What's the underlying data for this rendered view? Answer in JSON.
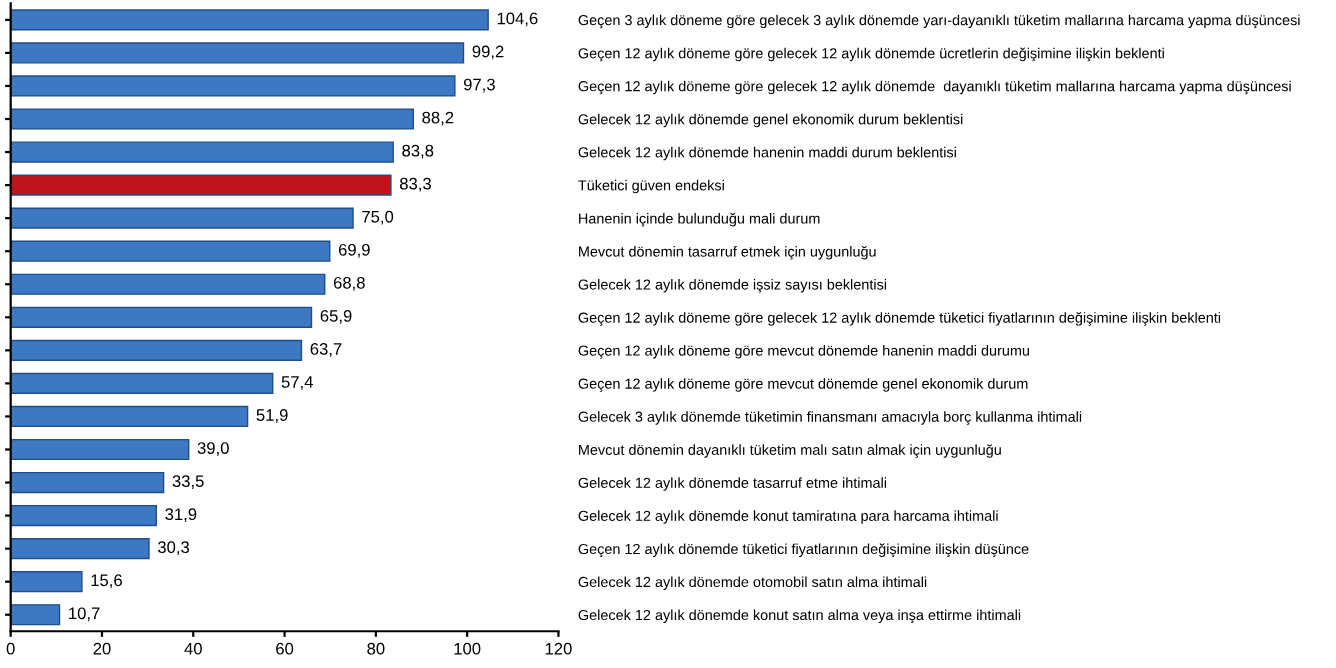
{
  "chart_data": {
    "type": "bar",
    "orientation": "horizontal",
    "categories": [
      "Geçen 3 aylık döneme göre gelecek 3 aylık dönemde yarı-dayanıklı tüketim mallarına harcama yapma düşüncesi",
      "Geçen 12 aylık döneme göre gelecek 12 aylık dönemde ücretlerin değişimine ilişkin beklenti",
      "Geçen 12 aylık döneme göre gelecek 12 aylık dönemde  dayanıklı tüketim mallarına harcama yapma düşüncesi",
      "Gelecek 12 aylık dönemde genel ekonomik durum beklentisi",
      "Gelecek 12 aylık dönemde hanenin maddi durum beklentisi",
      "Tüketici güven endeksi",
      "Hanenin içinde bulunduğu mali durum",
      "Mevcut dönemin tasarruf etmek için uygunluğu",
      "Gelecek 12 aylık dönemde işsiz sayısı beklentisi",
      "Geçen 12 aylık döneme göre gelecek 12 aylık dönemde tüketici fiyatlarının değişimine ilişkin beklenti",
      "Geçen 12 aylık döneme göre mevcut dönemde hanenin maddi durumu",
      "Geçen 12 aylık döneme göre mevcut dönemde genel ekonomik durum",
      "Gelecek 3 aylık dönemde tüketimin finansmanı amacıyla borç kullanma ihtimali",
      "Mevcut dönemin dayanıklı tüketim malı satın almak için uygunluğu",
      "Gelecek 12 aylık dönemde tasarruf etme ihtimali",
      "Gelecek 12 aylık dönemde konut tamiratına para harcama ihtimali",
      "Geçen 12 aylık dönemde tüketici fiyatlarının değişimine ilişkin düşünce",
      "Gelecek 12 aylık dönemde otomobil satın alma ihtimali",
      "Gelecek 12 aylık dönemde konut satın alma veya inşa ettirme ihtimali"
    ],
    "values": [
      104.6,
      99.2,
      97.3,
      88.2,
      83.8,
      83.3,
      75.0,
      69.9,
      68.8,
      65.9,
      63.7,
      57.4,
      51.9,
      39.0,
      33.5,
      31.9,
      30.3,
      15.6,
      10.7
    ],
    "value_labels": [
      "104,6",
      "99,2",
      "97,3",
      "88,2",
      "83,8",
      "83,3",
      "75,0",
      "69,9",
      "68,8",
      "65,9",
      "63,7",
      "57,4",
      "51,9",
      "39,0",
      "33,5",
      "31,9",
      "30,3",
      "15,6",
      "10,7"
    ],
    "colors": [
      "#3d78c2",
      "#3d78c2",
      "#3d78c2",
      "#3d78c2",
      "#3d78c2",
      "#c0141c",
      "#3d78c2",
      "#3d78c2",
      "#3d78c2",
      "#3d78c2",
      "#3d78c2",
      "#3d78c2",
      "#3d78c2",
      "#3d78c2",
      "#3d78c2",
      "#3d78c2",
      "#3d78c2",
      "#3d78c2",
      "#3d78c2"
    ],
    "xlim": [
      0,
      120
    ],
    "xticks": [
      0,
      20,
      40,
      60,
      80,
      100,
      120
    ],
    "grid": false,
    "legend": false
  }
}
